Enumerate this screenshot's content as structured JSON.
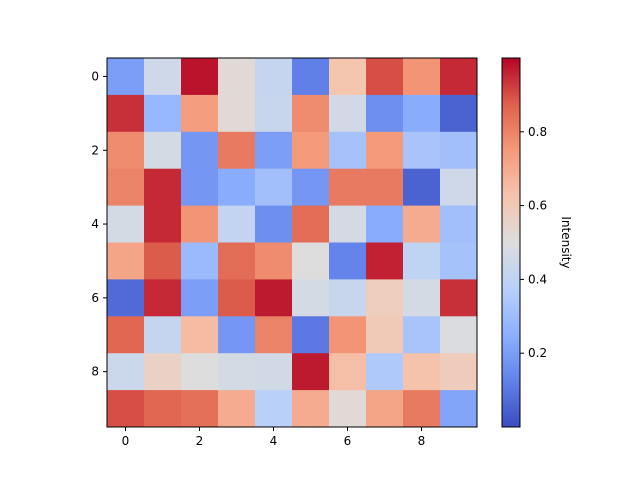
{
  "chart_data": {
    "type": "heatmap",
    "colormap": "coolwarm",
    "rows": 10,
    "cols": 10,
    "x_ticks": [
      "0",
      "2",
      "4",
      "6",
      "8"
    ],
    "y_ticks": [
      "0",
      "2",
      "4",
      "6",
      "8"
    ],
    "x_tick_values": [
      0,
      2,
      4,
      6,
      8
    ],
    "y_tick_values": [
      0,
      2,
      4,
      6,
      8
    ],
    "colorbar": {
      "label": "Intensity",
      "range": [
        0.0,
        1.0
      ],
      "ticks": [
        "0.2",
        "0.4",
        "0.6",
        "0.8"
      ],
      "tick_values": [
        0.2,
        0.4,
        0.6,
        0.8
      ]
    },
    "values": [
      [
        0.2,
        0.45,
        0.98,
        0.52,
        0.42,
        0.12,
        0.62,
        0.9,
        0.76,
        0.95
      ],
      [
        0.94,
        0.28,
        0.74,
        0.52,
        0.43,
        0.78,
        0.46,
        0.16,
        0.24,
        0.05
      ],
      [
        0.78,
        0.47,
        0.18,
        0.82,
        0.2,
        0.75,
        0.32,
        0.75,
        0.33,
        0.31
      ],
      [
        0.8,
        0.95,
        0.18,
        0.24,
        0.31,
        0.18,
        0.82,
        0.82,
        0.05,
        0.45
      ],
      [
        0.47,
        0.95,
        0.76,
        0.41,
        0.16,
        0.85,
        0.47,
        0.24,
        0.7,
        0.31
      ],
      [
        0.72,
        0.88,
        0.29,
        0.85,
        0.78,
        0.5,
        0.13,
        0.96,
        0.4,
        0.32
      ],
      [
        0.07,
        0.95,
        0.2,
        0.88,
        0.97,
        0.47,
        0.43,
        0.58,
        0.47,
        0.94
      ],
      [
        0.86,
        0.42,
        0.65,
        0.18,
        0.8,
        0.1,
        0.76,
        0.6,
        0.33,
        0.49
      ],
      [
        0.44,
        0.56,
        0.5,
        0.47,
        0.46,
        0.97,
        0.64,
        0.35,
        0.63,
        0.59
      ],
      [
        0.9,
        0.86,
        0.84,
        0.7,
        0.38,
        0.7,
        0.52,
        0.72,
        0.82,
        0.22
      ]
    ]
  }
}
